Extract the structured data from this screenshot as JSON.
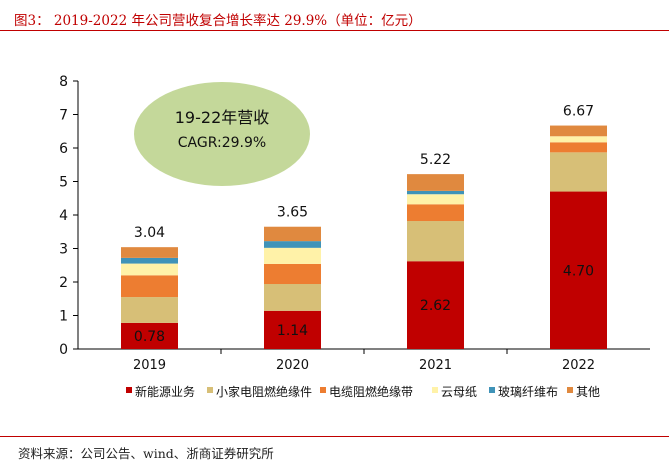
{
  "figure": {
    "title": "图3： 2019-2022 年公司营收复合增长率达 29.9%（单位：亿元）",
    "source": "资料来源：公司公告、wind、浙商证券研究所"
  },
  "annotation": {
    "line1": "19-22年营收",
    "line2": "CAGR:29.9%",
    "fill": "#c4d89a"
  },
  "chart_data": {
    "type": "bar",
    "stacked": true,
    "categories": [
      "2019",
      "2020",
      "2021",
      "2022"
    ],
    "ylim": [
      0,
      8
    ],
    "yticks": [
      0,
      1,
      2,
      3,
      4,
      5,
      6,
      7,
      8
    ],
    "grid": false,
    "legend_position": "bottom",
    "totals": [
      3.04,
      3.65,
      5.22,
      6.67
    ],
    "series": [
      {
        "name": "新能源业务",
        "color": "#c00000",
        "values": [
          0.78,
          1.14,
          2.62,
          4.7
        ],
        "labels": [
          "0.78",
          "1.14",
          "2.62",
          "4.70"
        ]
      },
      {
        "name": "小家电阻燃绝缘件",
        "color": "#d7bf77",
        "values": [
          0.77,
          0.8,
          1.2,
          1.17
        ]
      },
      {
        "name": "电缆阻燃绝缘带",
        "color": "#ed7d31",
        "values": [
          0.65,
          0.6,
          0.5,
          0.3
        ]
      },
      {
        "name": "云母纸",
        "color": "#fff2a8",
        "values": [
          0.35,
          0.48,
          0.3,
          0.18
        ]
      },
      {
        "name": "玻璃纤维布",
        "color": "#3f93b8",
        "values": [
          0.17,
          0.2,
          0.1,
          0.0
        ]
      },
      {
        "name": "其他",
        "color": "#e0893f",
        "values": [
          0.32,
          0.43,
          0.5,
          0.32
        ]
      }
    ]
  }
}
